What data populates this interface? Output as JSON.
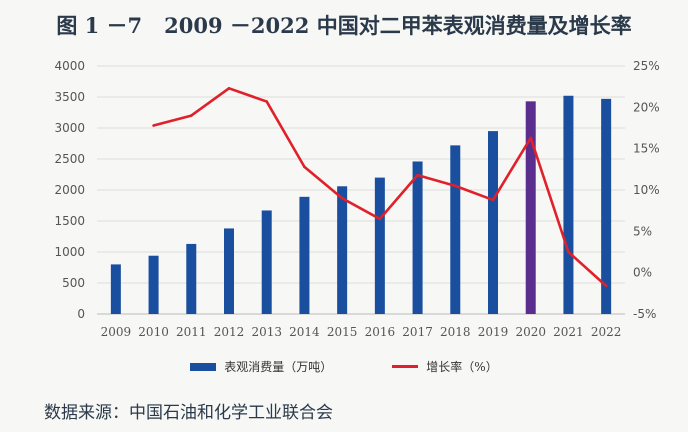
{
  "header": {
    "figure_no": "图 1 －7",
    "title": "2009 －2022 中国对二甲苯表观消费量及增长率"
  },
  "source": "数据来源：中国石油和化学工业联合会",
  "chart_data": {
    "type": "bar",
    "title": "2009 －2022 中国对二甲苯表观消费量及增长率",
    "categories": [
      "2009",
      "2010",
      "2011",
      "2012",
      "2013",
      "2014",
      "2015",
      "2016",
      "2017",
      "2018",
      "2019",
      "2020",
      "2021",
      "2022"
    ],
    "series": [
      {
        "name": "表观消费量（万吨）",
        "type": "bar",
        "axis": "left",
        "values": [
          800,
          940,
          1130,
          1380,
          1670,
          1890,
          2060,
          2200,
          2460,
          2720,
          2950,
          3430,
          3520,
          3470
        ]
      },
      {
        "name": "增长率（%）",
        "type": "line",
        "axis": "right",
        "values": [
          null,
          17.8,
          19.0,
          22.3,
          20.7,
          12.8,
          9.0,
          6.5,
          11.8,
          10.5,
          8.8,
          16.3,
          2.5,
          -1.6
        ]
      }
    ],
    "highlight": {
      "category": "2020",
      "color": "#5a2d8e"
    },
    "y_left": {
      "ylim": [
        0,
        4000
      ],
      "ticks": [
        0,
        500,
        1000,
        1500,
        2000,
        2500,
        3000,
        3500,
        4000
      ]
    },
    "y_right": {
      "ylim": [
        -5,
        25
      ],
      "ticks": [
        "-5%",
        "0%",
        "5%",
        "10%",
        "15%",
        "20%",
        "25%"
      ]
    },
    "legend": [
      "表观消费量（万吨）",
      "增长率（%）"
    ],
    "legend_position": "bottom",
    "colors": {
      "bar": "#1a4fa0",
      "line": "#e0202a",
      "grid": "#dcdcdc",
      "axis_text": "#555555"
    }
  }
}
